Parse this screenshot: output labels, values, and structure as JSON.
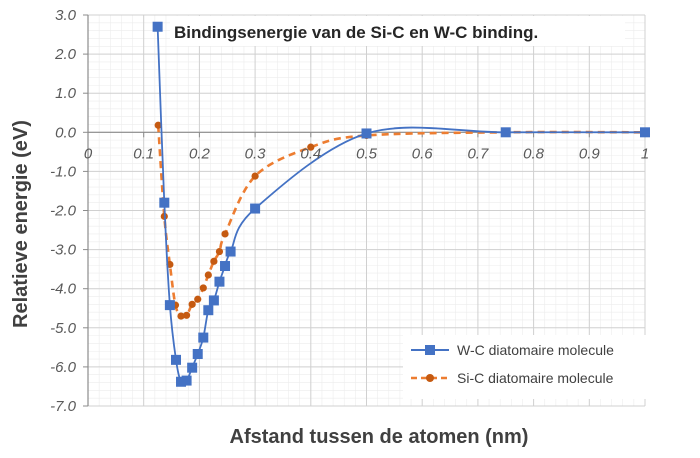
{
  "chart_data": {
    "type": "scatter",
    "title": "Bindingsenergie van de Si-C en W-C binding.",
    "xlabel": "Afstand tussen de atomen (nm)",
    "ylabel": "Relatieve energie (eV)",
    "xlim": [
      0,
      1
    ],
    "ylim": [
      -7,
      3
    ],
    "x_ticks": [
      "0",
      "0.1",
      "0.2",
      "0.3",
      "0.4",
      "0.5",
      "0.6",
      "0.7",
      "0.8",
      "0.9",
      "1"
    ],
    "y_ticks": [
      "3.0",
      "2.0",
      "1.0",
      "0.0",
      "-1.0",
      "-2.0",
      "-3.0",
      "-4.0",
      "-5.0",
      "-6.0",
      "-7.0"
    ],
    "grid": true,
    "legend_position": "bottom-right",
    "series": [
      {
        "name": "W-C diatomaire molecule",
        "color": "#4472c4",
        "marker": "square",
        "line": "solid",
        "x": [
          0.125,
          0.137,
          0.147,
          0.158,
          0.167,
          0.177,
          0.187,
          0.197,
          0.207,
          0.216,
          0.226,
          0.236,
          0.246,
          0.256,
          0.3,
          0.5,
          0.75,
          1.0
        ],
        "y": [
          2.7,
          -1.8,
          -4.42,
          -5.82,
          -6.38,
          -6.35,
          -6.02,
          -5.67,
          -5.25,
          -4.55,
          -4.3,
          -3.82,
          -3.42,
          -3.05,
          -1.95,
          -0.03,
          0.0,
          0.0
        ]
      },
      {
        "name": "Si-C diatomaire molecule",
        "color": "#ed7d31",
        "marker": "circle",
        "line": "dashed",
        "x": [
          0.126,
          0.137,
          0.147,
          0.157,
          0.167,
          0.177,
          0.187,
          0.197,
          0.207,
          0.216,
          0.226,
          0.236,
          0.246,
          0.3,
          0.4,
          0.5,
          0.75,
          1.0
        ],
        "y": [
          0.18,
          -2.15,
          -3.38,
          -4.42,
          -4.7,
          -4.68,
          -4.4,
          -4.27,
          -3.98,
          -3.65,
          -3.3,
          -3.05,
          -2.6,
          -1.12,
          -0.38,
          -0.08,
          0.0,
          0.0
        ]
      }
    ]
  }
}
